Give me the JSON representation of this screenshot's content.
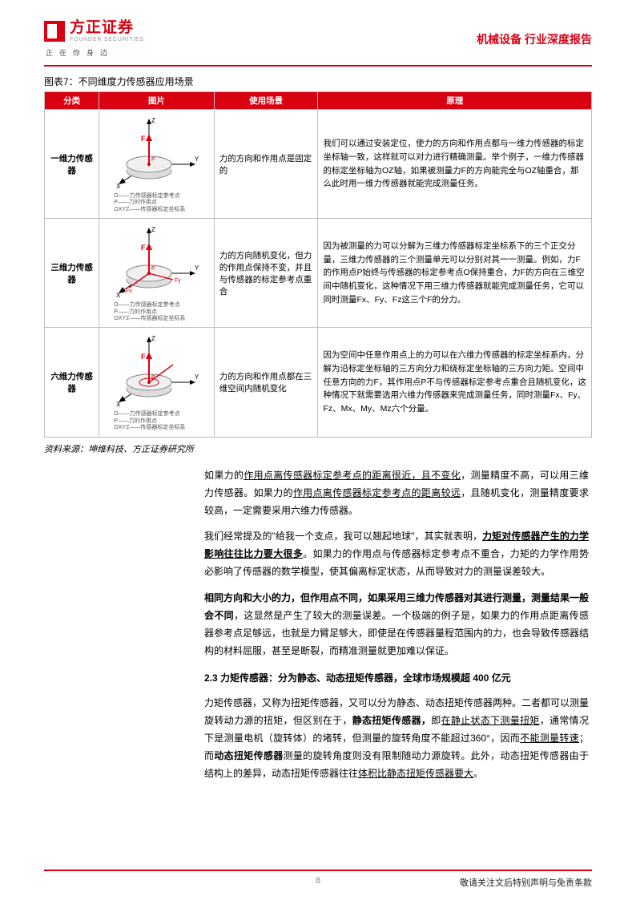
{
  "brand": {
    "cn": "方正证券",
    "en": "FOUNDER SECURITIES",
    "tagline": "正在你身边"
  },
  "header_right": "机械设备 行业深度报告",
  "fig_title": "图表7：不同维度力传感器应用场景",
  "table": {
    "headers": [
      "分类",
      "图片",
      "使用场景",
      "原理"
    ],
    "rows": [
      {
        "cat": "一维力传感器",
        "use": "力的方向和作用点是固定的",
        "prin": "我们可以通过安装定位，使力的方向和作用点都与一维力传感器的标定坐标轴一致，这样就可以对力进行精确测量。举个例子，一维力传感器的标定坐标轴为OZ轴，如果被测量力F的方向能完全与OZ轴重合，那么此时用一维力传感器就能完成测量任务。",
        "caption": "O——力传感器标定参考点\nP——力的作用点\nOXYZ——传感器标定坐标系"
      },
      {
        "cat": "三维力传感器",
        "use": "力的方向随机变化，但力的作用点保持不变，并且与传感器的标定参考点重合",
        "prin": "因为被测量的力可以分解为三维力传感器标定坐标系下的三个正交分量，三维力传感器的三个测量单元可以分别对其一一测量。例如，力F的作用点P始终与传感器的标定参考点O保持重合，力F的方向在三维空间中随机变化，这种情况下用三维力传感器就能完成测量任务，它可以同时测量Fx、Fy、Fz这三个F的分力。",
        "caption": "O——力传感器标定参考点\nP——力的作用点\nOXYZ——传感器标定坐标系"
      },
      {
        "cat": "六维力传感器",
        "use": "力的方向和作用点都在三维空间内随机变化",
        "prin": "因为空间中任意作用点上的力可以在六维力传感器的标定坐标系内，分解为沿标定坐标轴的三方向分力和绕标定坐标轴的三方向力矩。空间中任意方向的力F，其作用点P不与传感器标定参考点重合且随机变化，这种情况下就需要选用六维力传感器来完成测量任务，同时测量Fx、Fy、Fz、Mx、My、Mz六个分量。",
        "caption": "O——力传感器标定参考点\nP——力的作用点\nOXYZ——传感器标定坐标系"
      }
    ]
  },
  "source": "资料来源：坤维科技、方正证券研究所",
  "body": {
    "p1a": "如果力的",
    "p1u1": "作用点离传感器标定参考点的距离很近，且不变化",
    "p1b": "，测量精度不高，可以用三维力传感器。如果力的",
    "p1u2": "作用点离传感器标定参考点的距离较远",
    "p1c": "，且随机变化，测量精度要求较高，一定需要采用六维力传感器。",
    "p2a": "我们经常提及的\"给我一个支点，我可以翘起地球\"，其实就表明，",
    "p2bu": "力矩对传感器产生的力学影响往往比力要大很多",
    "p2b": "。如果力的作用点与传感器标定参考点不重合，力矩的力学作用势必影响了传感器的数学模型，使其偏离标定状态，从而导致对力的测量误差较大。",
    "p3b": "相同方向和大小的力，但作用点不同，如果采用三维力传感器对其进行测量，测量结果一般会不同",
    "p3a": "，这显然是产生了较大的测量误差。一个极端的例子是，如果力的作用点距离传感器参考点足够远，也就是力臂足够大，即使是在传感器量程范围内的力，也会导致传感器结构的材料屈服，甚至是断裂，而精准测量就更加难以保证。",
    "sec": "2.3 力矩传感器：分为静态、动态扭矩传感器，全球市场规模超 400 亿元",
    "p4a": "力矩传感器，又称为扭矩传感器，又可以分为静态、动态扭矩传感器两种。二者都可以测量旋转动力源的扭矩，但区别在于，",
    "p4b1": "静态扭矩传感器，",
    "p4b2": "即",
    "p4u1": "在静止状态下测量扭矩",
    "p4c": "，通常情况下是测量电机（旋转体）的堵转，但测量的旋转角度不能超过360°，因而",
    "p4u2": "不能测量转速",
    "p4d": "；而",
    "p4b3": "动态扭矩传感器",
    "p4e": "测量的旋转角度则没有限制随动力源旋转。此外，动态扭矩传感器由于结构上的差异，动态扭矩传感器往往",
    "p4u3": "体积比静态扭矩传感器要大",
    "p4f": "。"
  },
  "footer": {
    "page": "8",
    "disclaimer": "敬请关注文后特别声明与免责条款"
  }
}
